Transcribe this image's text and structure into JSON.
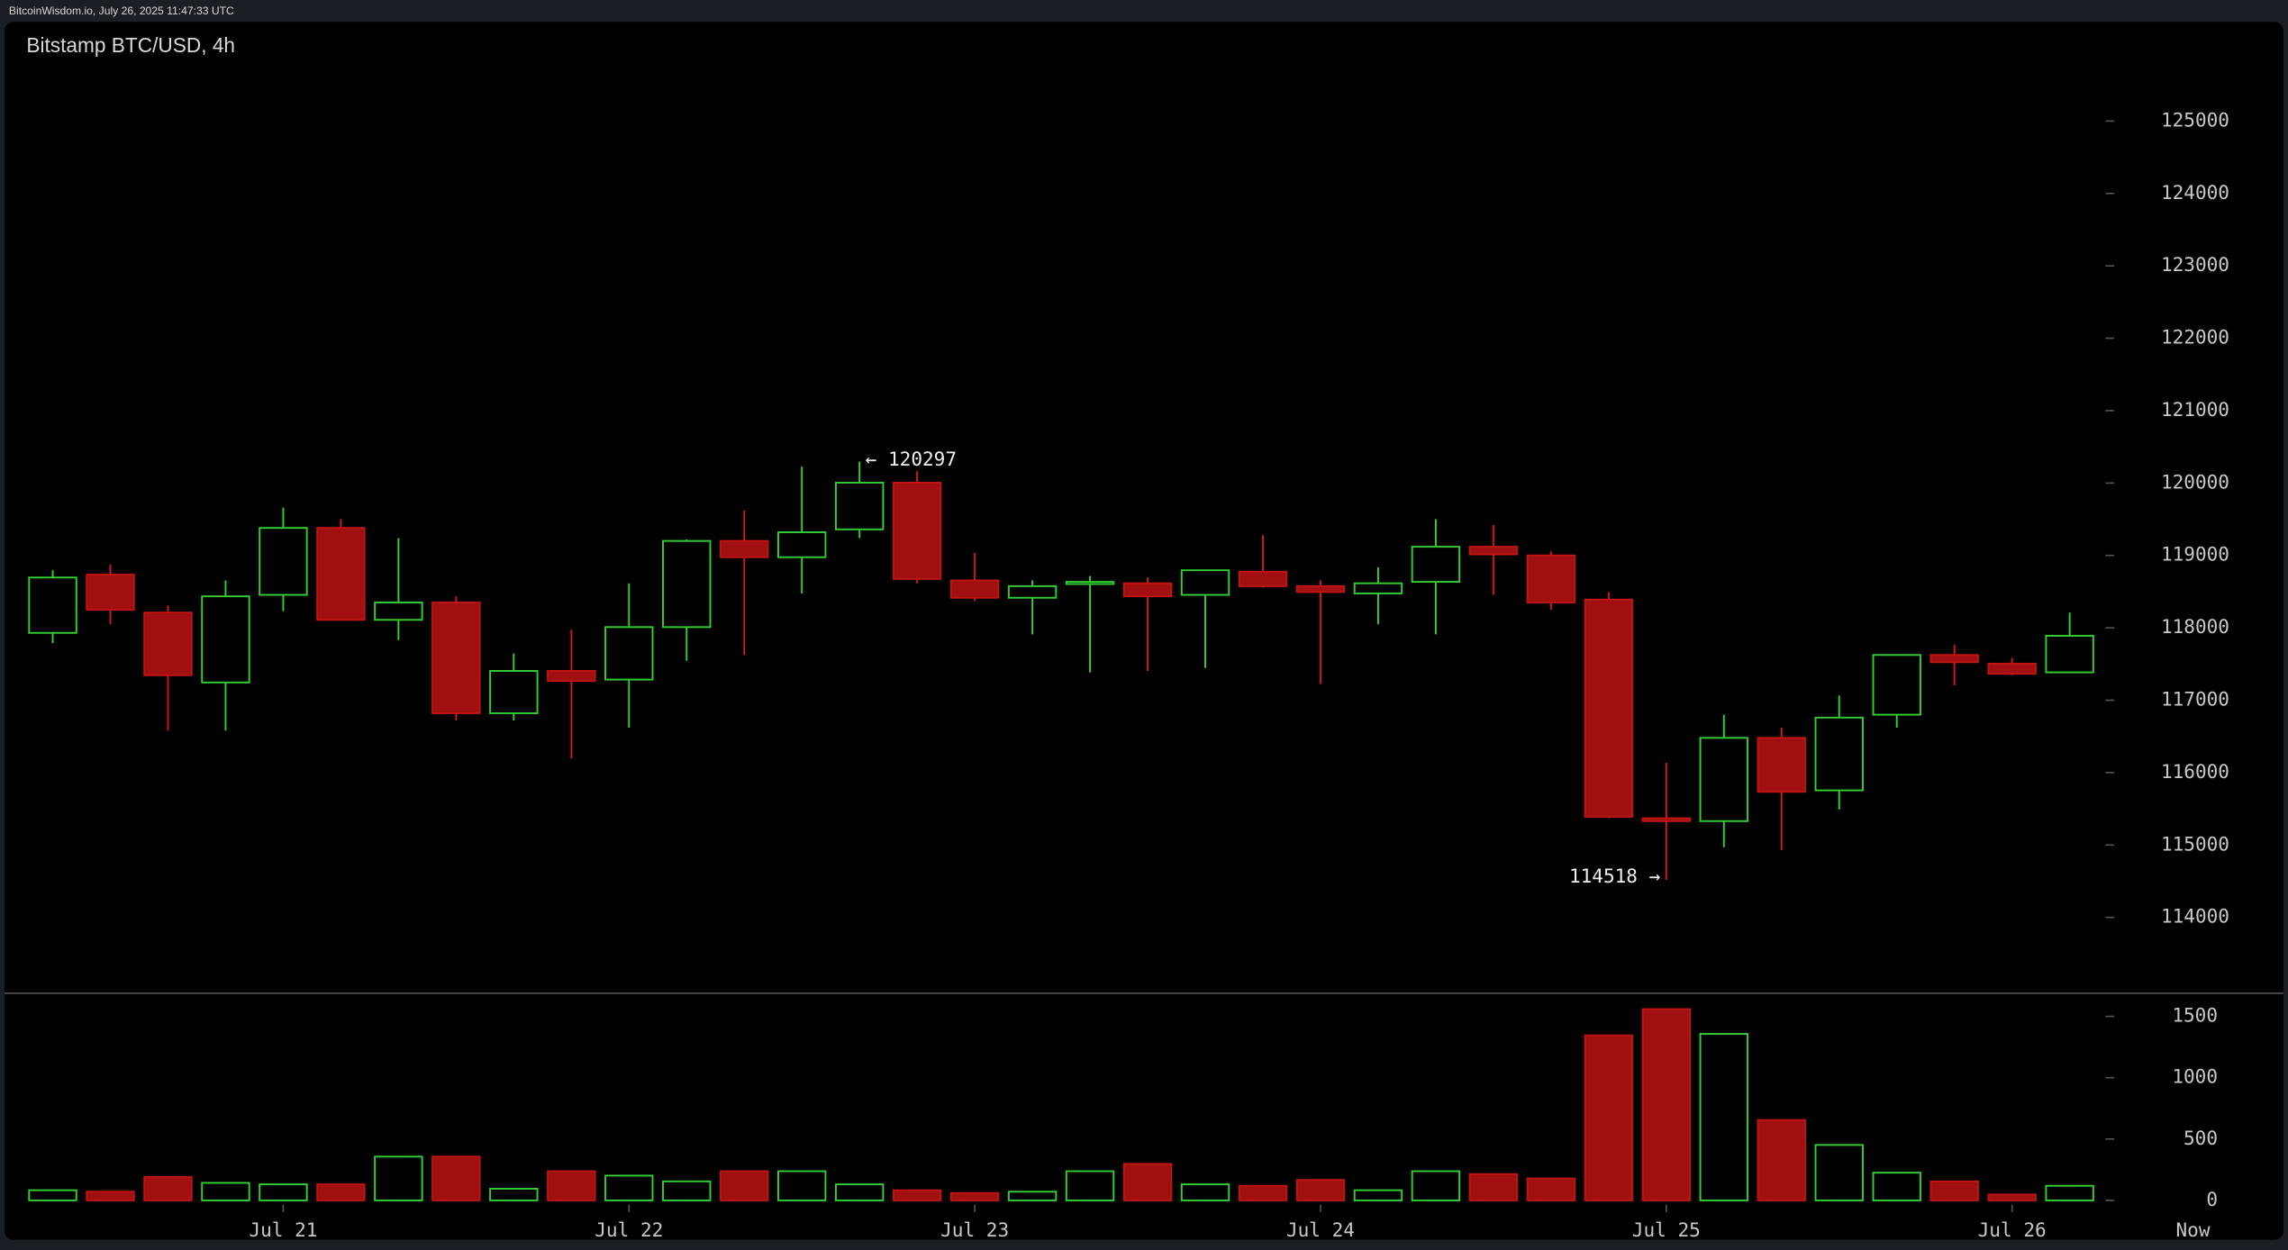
{
  "header": "BitcoinWisdom.io, July 26, 2025 11:47:33 UTC",
  "chart_data": {
    "type": "candlestick",
    "title": "Bitstamp BTC/USD, 4h",
    "categories": [
      null,
      null,
      null,
      null,
      "Jul 21",
      null,
      null,
      null,
      null,
      null,
      "Jul 22",
      null,
      null,
      null,
      null,
      null,
      "Jul 23",
      null,
      null,
      null,
      null,
      null,
      "Jul 24",
      null,
      null,
      null,
      null,
      null,
      "Jul 25",
      null,
      null,
      null,
      null,
      null,
      "Jul 26",
      null
    ],
    "end_label": "Now",
    "open": [
      117930,
      118735,
      118210,
      117245,
      118455,
      119380,
      118110,
      118350,
      116820,
      117405,
      117285,
      118010,
      119200,
      118975,
      119360,
      120005,
      118655,
      118415,
      118615,
      118615,
      118455,
      118775,
      118575,
      118475,
      118635,
      119120,
      119000,
      118390,
      115370,
      115330,
      116480,
      115755,
      116800,
      117625,
      117505,
      117385
    ],
    "high": [
      118795,
      118875,
      118310,
      118655,
      119660,
      119500,
      119240,
      118435,
      117645,
      117970,
      118615,
      119220,
      119620,
      120225,
      120297,
      120165,
      119035,
      118655,
      118715,
      118695,
      118795,
      119280,
      118655,
      118835,
      119500,
      119420,
      119055,
      118495,
      116135,
      116800,
      116620,
      117065,
      117625,
      117770,
      117585,
      118210
    ],
    "low": [
      117790,
      118050,
      116580,
      116580,
      118230,
      118110,
      117830,
      116720,
      116720,
      116195,
      116620,
      117545,
      117625,
      118475,
      119240,
      118615,
      118370,
      117910,
      117385,
      117405,
      117445,
      118555,
      117225,
      118050,
      117910,
      118455,
      118250,
      115370,
      114518,
      114970,
      114930,
      115490,
      116620,
      117205,
      117345,
      117385
    ],
    "close": [
      118695,
      118250,
      117345,
      118435,
      119380,
      118110,
      118350,
      116820,
      117405,
      117265,
      118010,
      119200,
      118975,
      119320,
      120005,
      118675,
      118415,
      118575,
      118635,
      118435,
      118795,
      118575,
      118495,
      118615,
      119120,
      119015,
      118350,
      115390,
      115330,
      116480,
      115735,
      116760,
      117625,
      117525,
      117365,
      117890
    ],
    "volume": [
      83,
      71,
      190,
      143,
      131,
      131,
      357,
      357,
      95,
      238,
      202,
      155,
      238,
      238,
      131,
      83,
      60,
      71,
      238,
      298,
      131,
      119,
      167,
      83,
      238,
      214,
      179,
      1345,
      1559,
      1357,
      655,
      452,
      226,
      155,
      48,
      119
    ],
    "up_color": "#33cc33",
    "down_color": "#a01010",
    "ylim": [
      113000,
      126000
    ],
    "yticks": [
      114000,
      115000,
      116000,
      117000,
      118000,
      119000,
      120000,
      121000,
      122000,
      123000,
      124000,
      125000
    ],
    "volume_ylim": [
      0,
      1700
    ],
    "volume_yticks": [
      0,
      500,
      1000,
      1500
    ],
    "annotations": [
      {
        "label": "← 120297",
        "value": 120297,
        "side": "right"
      },
      {
        "label": "114518 →",
        "value": 114518,
        "side": "left"
      }
    ]
  }
}
